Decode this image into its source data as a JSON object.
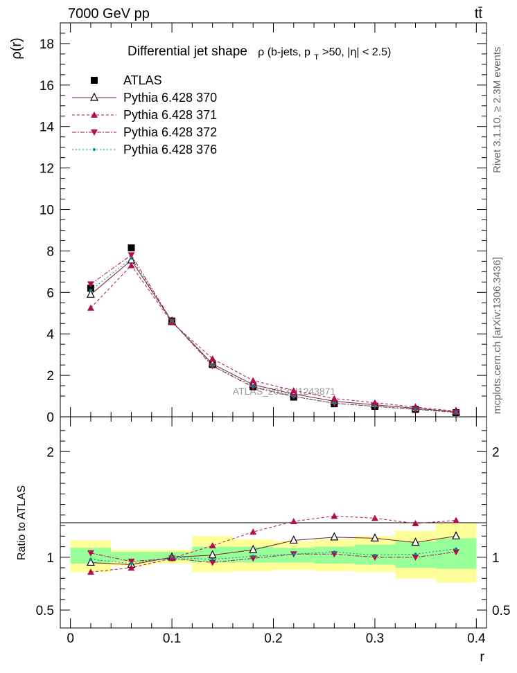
{
  "header": {
    "left": "7000 GeV pp",
    "right": "tt̄"
  },
  "side_labels": {
    "rivet": "Rivet 3.1.10, ≥ 2.3M events",
    "mcplots": "mcplots.cern.ch [arXiv:1306.3436]"
  },
  "watermark": "ATLAS_2013_I1243871",
  "chart_data": [
    {
      "type": "line",
      "title": "Differential jet shape  ρ (b-jets, p_T>50, |η| < 2.5)",
      "title_main": "Differential jet shape",
      "title_sub": "ρ (b-jets, p",
      "title_sub_index": "T",
      "title_sub_end": ">50, |η| < 2.5)",
      "ylabel": "ρ(r)",
      "xlabel": "",
      "xlim": [
        -0.01,
        0.41
      ],
      "ylim": [
        0,
        19
      ],
      "yticks": [
        0,
        2,
        4,
        6,
        8,
        10,
        12,
        14,
        16,
        18
      ],
      "grid": false,
      "legend_position": "top-left",
      "x": [
        0.02,
        0.06,
        0.1,
        0.14,
        0.18,
        0.22,
        0.26,
        0.3,
        0.34,
        0.38
      ],
      "series": [
        {
          "name": "ATLAS",
          "marker": "square",
          "color": "#000000",
          "values": [
            6.2,
            8.15,
            4.62,
            2.52,
            1.45,
            0.95,
            0.63,
            0.5,
            0.36,
            0.2
          ]
        },
        {
          "name": "Pythia 6.428 370",
          "marker": "triangle-open",
          "color": "#7a1f2b",
          "dash": "solid",
          "values": [
            5.9,
            7.55,
            4.6,
            2.55,
            1.55,
            1.1,
            0.75,
            0.58,
            0.41,
            0.24
          ]
        },
        {
          "name": "Pythia 6.428 371",
          "marker": "triangle-up",
          "color": "#b0104a",
          "dash": "4,3",
          "values": [
            5.25,
            7.3,
            4.55,
            2.8,
            1.75,
            1.27,
            0.88,
            0.68,
            0.47,
            0.27
          ]
        },
        {
          "name": "Pythia 6.428 372",
          "marker": "triangle-down",
          "color": "#b0104a",
          "dash": "6,2,2,2",
          "values": [
            6.4,
            7.8,
            4.6,
            2.45,
            1.43,
            0.98,
            0.65,
            0.5,
            0.36,
            0.21
          ]
        },
        {
          "name": "Pythia 6.428 376",
          "marker": "dot",
          "color": "#00898a",
          "dash": "2,3",
          "values": [
            6.1,
            7.65,
            4.62,
            2.48,
            1.47,
            0.98,
            0.66,
            0.51,
            0.37,
            0.22
          ]
        }
      ]
    },
    {
      "type": "line",
      "title": "",
      "ylabel": "Ratio to ATLAS",
      "xlabel": "r",
      "xlim": [
        -0.01,
        0.41
      ],
      "ylim": [
        0.33,
        2.33
      ],
      "yticks": [
        0.5,
        1,
        2
      ],
      "xticks": [
        0,
        0.1,
        0.2,
        0.3,
        0.4
      ],
      "grid": false,
      "x": [
        0.02,
        0.06,
        0.1,
        0.14,
        0.18,
        0.22,
        0.26,
        0.3,
        0.34,
        0.38
      ],
      "bin_edges": [
        0,
        0.04,
        0.08,
        0.12,
        0.16,
        0.2,
        0.24,
        0.28,
        0.32,
        0.36,
        0.4
      ],
      "uncertainty_total": [
        [
          0.86,
          1.16
        ],
        [
          0.92,
          1.07
        ],
        [
          0.94,
          1.07
        ],
        [
          0.86,
          1.2
        ],
        [
          0.87,
          1.17
        ],
        [
          0.88,
          1.15
        ],
        [
          0.87,
          1.17
        ],
        [
          0.86,
          1.2
        ],
        [
          0.8,
          1.25
        ],
        [
          0.76,
          1.32
        ]
      ],
      "uncertainty_stat": [
        [
          0.94,
          1.09
        ],
        [
          0.96,
          1.05
        ],
        [
          0.97,
          1.05
        ],
        [
          0.95,
          1.1
        ],
        [
          0.95,
          1.1
        ],
        [
          0.95,
          1.09
        ],
        [
          0.94,
          1.1
        ],
        [
          0.93,
          1.12
        ],
        [
          0.9,
          1.15
        ],
        [
          0.89,
          1.18
        ]
      ],
      "series": [
        {
          "name": "Pythia 6.428 370",
          "values": [
            0.95,
            0.93,
            1.0,
            1.02,
            1.07,
            1.16,
            1.19,
            1.18,
            1.14,
            1.2
          ]
        },
        {
          "name": "Pythia 6.428 371",
          "values": [
            0.86,
            0.9,
            0.99,
            1.11,
            1.24,
            1.34,
            1.39,
            1.37,
            1.32,
            1.35
          ]
        },
        {
          "name": "Pythia 6.428 372",
          "values": [
            1.04,
            0.96,
            0.99,
            0.95,
            0.99,
            1.03,
            1.03,
            1.0,
            1.0,
            1.05
          ]
        },
        {
          "name": "Pythia 6.428 376",
          "values": [
            0.98,
            0.94,
            1.0,
            0.98,
            1.01,
            1.03,
            1.05,
            1.02,
            1.03,
            1.08
          ]
        }
      ]
    }
  ]
}
